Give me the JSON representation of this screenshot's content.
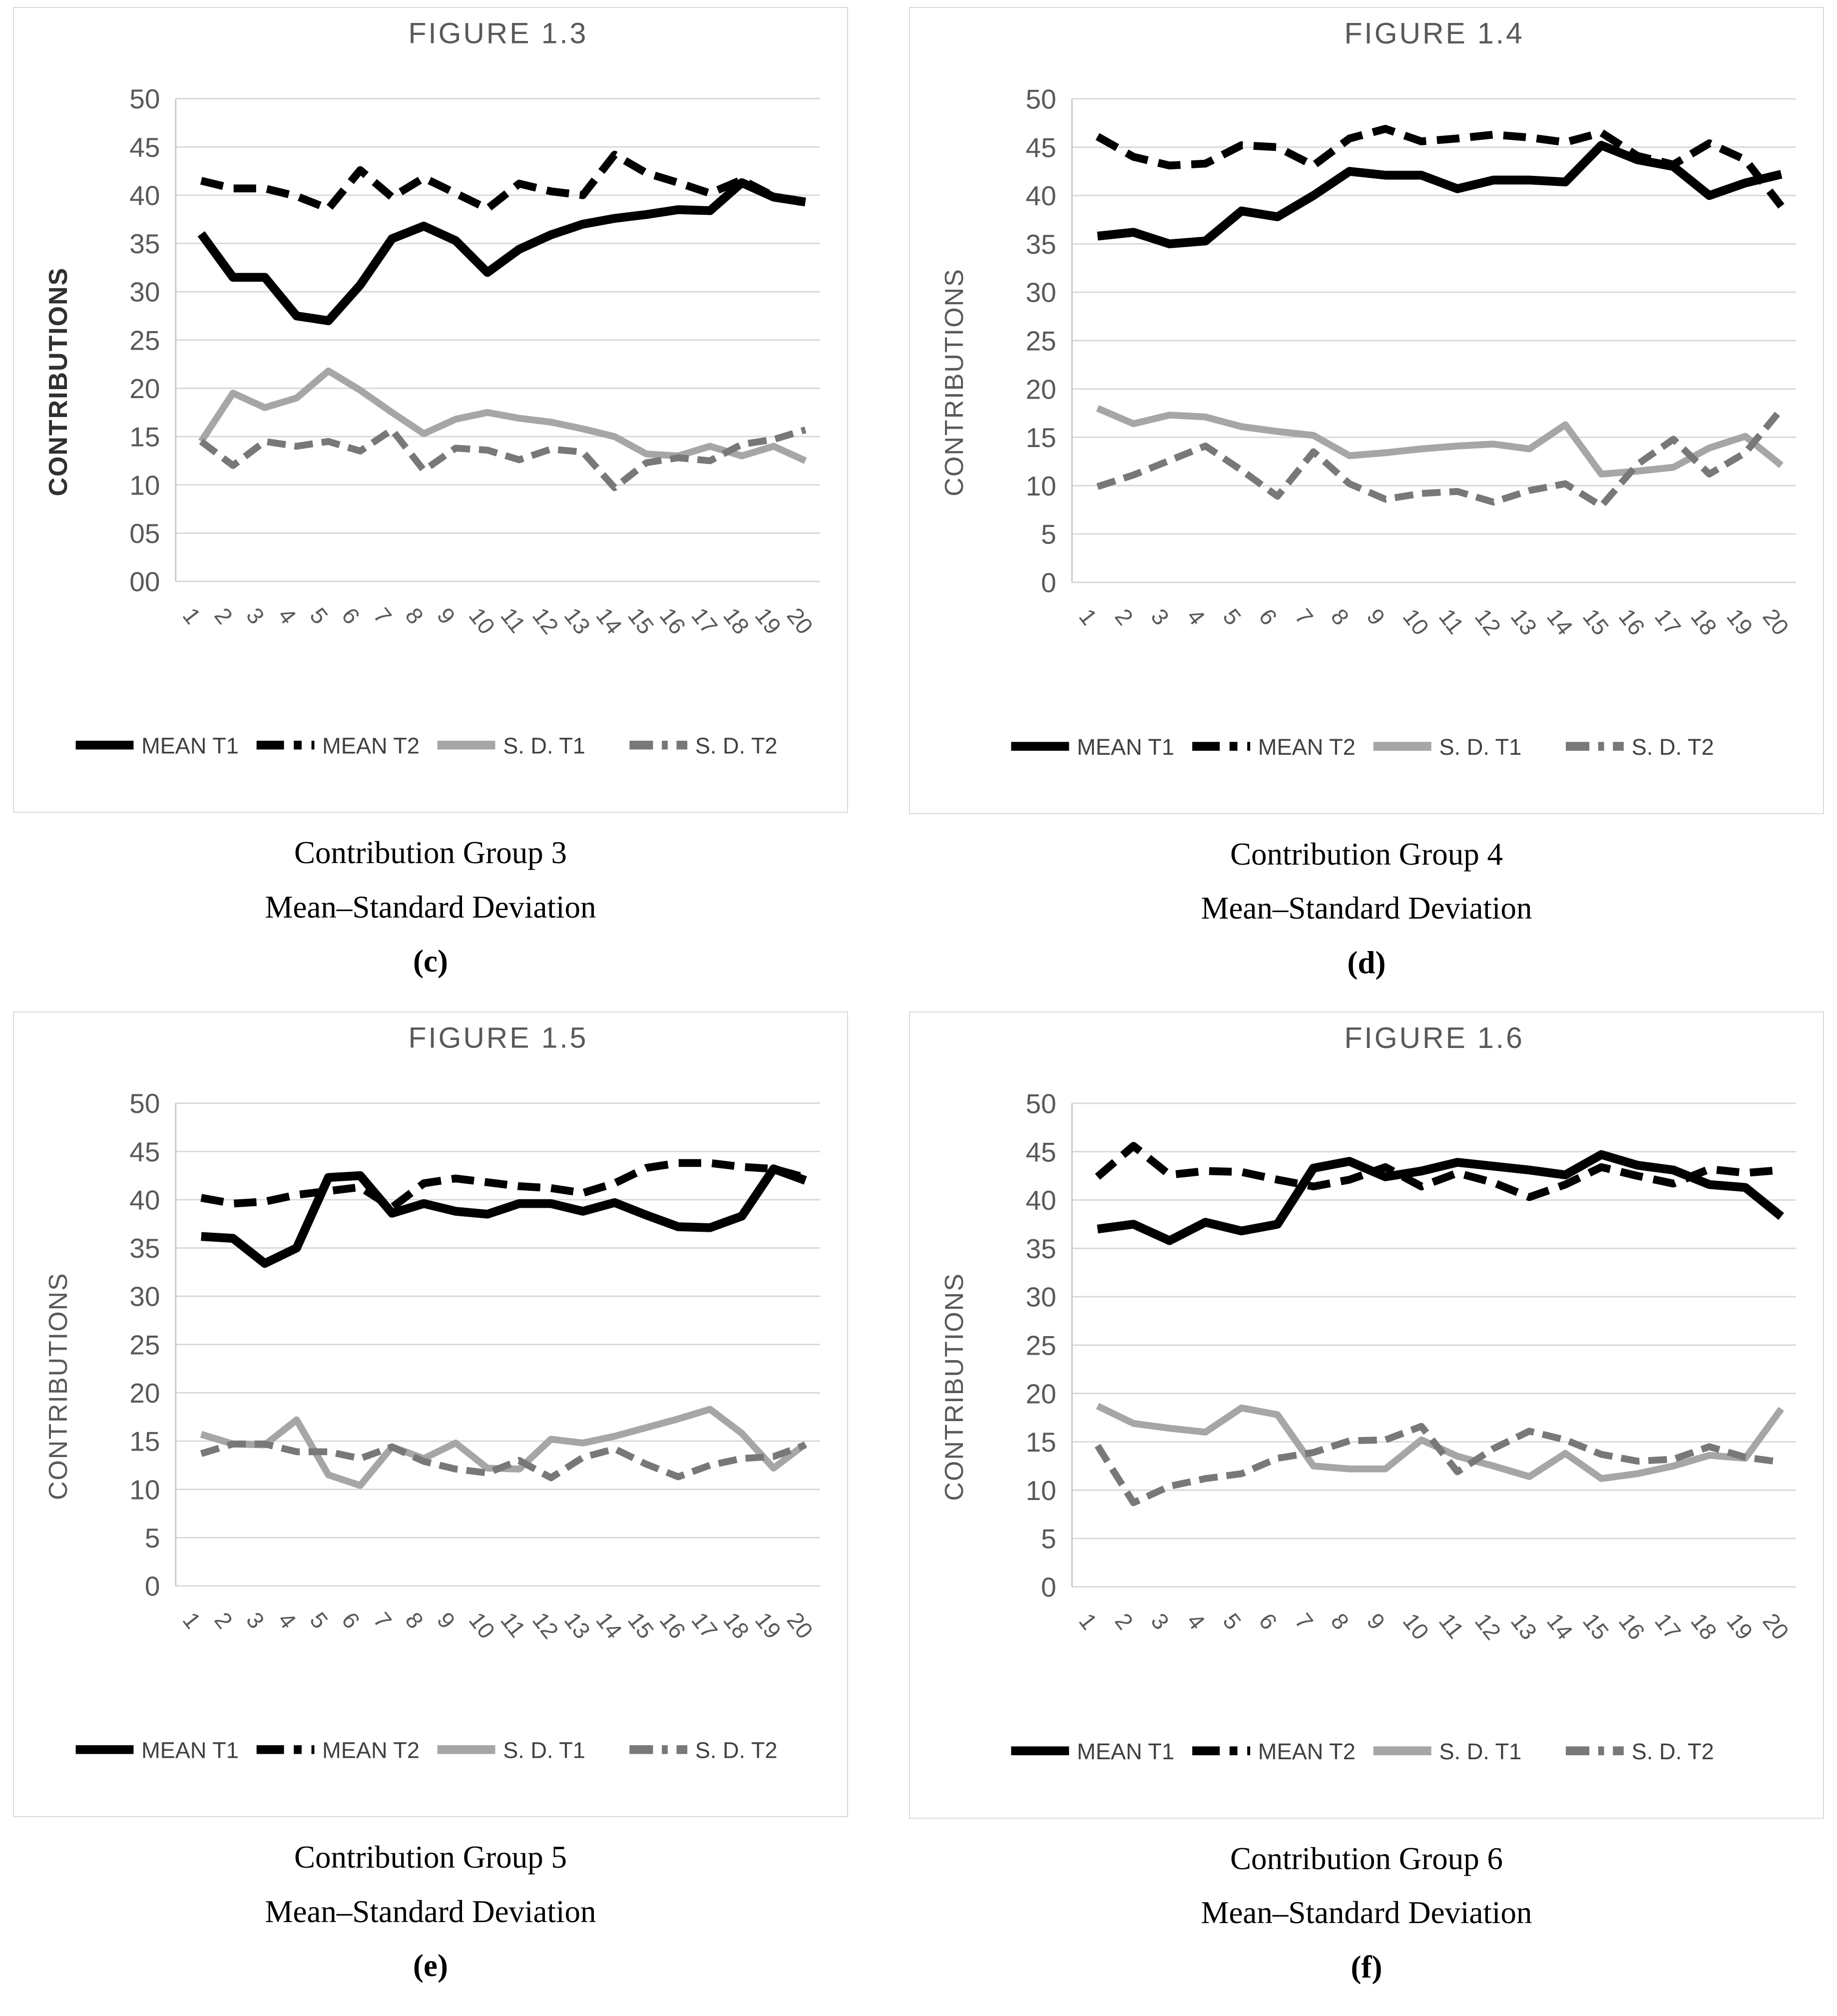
{
  "page": {
    "background": "#ffffff",
    "grid_color": "#d9d9d9",
    "axis_text_color": "#595959",
    "legend_text_color": "#404040"
  },
  "figures": [
    {
      "panel_title": "FIGURE 1.3",
      "y_axis_title": "CONTRIBUTIONS",
      "y_axis_title_bold": true,
      "y_tick_labels": [
        "50",
        "45",
        "40",
        "35",
        "30",
        "25",
        "20",
        "15",
        "10",
        "05",
        "00"
      ],
      "caption": {
        "group": "Contribution Group 3",
        "sub": "Mean–Standard Deviation",
        "letter": "(c)"
      }
    },
    {
      "panel_title": "FIGURE 1.4",
      "y_axis_title": "CONTRIBUTIONS",
      "y_axis_title_bold": false,
      "y_tick_labels": [
        "50",
        "45",
        "40",
        "35",
        "30",
        "25",
        "20",
        "15",
        "10",
        "5",
        "0"
      ],
      "caption": {
        "group": "Contribution Group 4",
        "sub": "Mean–Standard Deviation",
        "letter": "(d)"
      }
    },
    {
      "panel_title": "FIGURE 1.5",
      "y_axis_title": "CONTRIBUTIONS",
      "y_axis_title_bold": false,
      "y_tick_labels": [
        "50",
        "45",
        "40",
        "35",
        "30",
        "25",
        "20",
        "15",
        "10",
        "5",
        "0"
      ],
      "caption": {
        "group": "Contribution Group 5",
        "sub": "Mean–Standard Deviation",
        "letter": "(e)"
      }
    },
    {
      "panel_title": "FIGURE 1.6",
      "y_axis_title": "CONTRIBUTIONS",
      "y_axis_title_bold": false,
      "y_tick_labels": [
        "50",
        "45",
        "40",
        "35",
        "30",
        "25",
        "20",
        "15",
        "10",
        "5",
        "0"
      ],
      "caption": {
        "group": "Contribution Group 6",
        "sub": "Mean–Standard Deviation",
        "letter": "(f)"
      }
    }
  ],
  "chart_data": [
    {
      "type": "line",
      "title": "FIGURE 1.3",
      "xlabel": "",
      "ylabel": "CONTRIBUTIONS",
      "ylim": [
        0,
        50
      ],
      "grid": true,
      "legend_position": "bottom",
      "x": [
        1,
        2,
        3,
        4,
        5,
        6,
        7,
        8,
        9,
        10,
        11,
        12,
        13,
        14,
        15,
        16,
        17,
        18,
        19,
        20
      ],
      "series": [
        {
          "name": "MEAN T1",
          "color": "#000000",
          "dash": null,
          "values": [
            36,
            31.5,
            31.5,
            27.5,
            27,
            30.7,
            35.5,
            36.8,
            35.3,
            32,
            34.4,
            35.9,
            37,
            37.6,
            38,
            38.5,
            38.4,
            41.3,
            39.8,
            39.3
          ]
        },
        {
          "name": "MEAN T2",
          "color": "#000000",
          "dash": "46 22",
          "values": [
            41.5,
            40.7,
            40.7,
            39.9,
            38.6,
            42.6,
            39.8,
            41.8,
            40.2,
            38.6,
            41.2,
            40.4,
            40,
            44.2,
            42.3,
            41.3,
            40.2,
            41.6,
            39.9,
            39.2
          ]
        },
        {
          "name": "S. D. T1",
          "color": "#a6a6a6",
          "dash": null,
          "values": [
            14.5,
            19.5,
            18,
            19,
            21.8,
            19.8,
            17.5,
            15.3,
            16.8,
            17.5,
            16.9,
            16.5,
            15.8,
            15,
            13.2,
            13,
            14,
            13,
            14,
            12.5
          ]
        },
        {
          "name": "S. D. T2",
          "color": "#787878",
          "dash": "38 18",
          "values": [
            14.5,
            12,
            14.5,
            14,
            14.5,
            13.5,
            15.7,
            11.5,
            13.8,
            13.6,
            12.6,
            13.7,
            13.4,
            9.7,
            12.3,
            12.8,
            12.5,
            14.2,
            14.7,
            15.7
          ]
        }
      ]
    },
    {
      "type": "line",
      "title": "FIGURE 1.4",
      "xlabel": "",
      "ylabel": "CONTRIBUTIONS",
      "ylim": [
        0,
        50
      ],
      "grid": true,
      "legend_position": "bottom",
      "x": [
        1,
        2,
        3,
        4,
        5,
        6,
        7,
        8,
        9,
        10,
        11,
        12,
        13,
        14,
        15,
        16,
        17,
        18,
        19,
        20
      ],
      "series": [
        {
          "name": "MEAN T1",
          "color": "#000000",
          "dash": null,
          "values": [
            35.8,
            36.2,
            35,
            35.3,
            38.4,
            37.8,
            40,
            42.5,
            42.1,
            42.1,
            40.7,
            41.6,
            41.6,
            41.4,
            45.2,
            43.7,
            43,
            40,
            41.3,
            42.2
          ]
        },
        {
          "name": "MEAN T2",
          "color": "#000000",
          "dash": "46 22",
          "values": [
            46.1,
            44,
            43.1,
            43.3,
            45.2,
            45,
            43.1,
            45.9,
            46.9,
            45.6,
            45.9,
            46.3,
            46,
            45.5,
            46.5,
            44.1,
            43.2,
            45.4,
            43.7,
            38.9
          ]
        },
        {
          "name": "S. D. T1",
          "color": "#a6a6a6",
          "dash": null,
          "values": [
            18,
            16.4,
            17.3,
            17.1,
            16.1,
            15.6,
            15.2,
            13.1,
            13.4,
            13.8,
            14.1,
            14.3,
            13.8,
            16.3,
            11.2,
            11.5,
            11.9,
            13.9,
            15.1,
            12.1
          ]
        },
        {
          "name": "S. D. T2",
          "color": "#787878",
          "dash": "38 18",
          "values": [
            9.9,
            11.1,
            12.6,
            14.1,
            11.6,
            8.9,
            13.5,
            10.2,
            8.6,
            9.2,
            9.4,
            8.3,
            9.5,
            10.2,
            7.9,
            12.2,
            14.8,
            11.2,
            13.4,
            17.9
          ]
        }
      ]
    },
    {
      "type": "line",
      "title": "FIGURE 1.5",
      "xlabel": "",
      "ylabel": "CONTRIBUTIONS",
      "ylim": [
        0,
        50
      ],
      "grid": true,
      "legend_position": "bottom",
      "x": [
        1,
        2,
        3,
        4,
        5,
        6,
        7,
        8,
        9,
        10,
        11,
        12,
        13,
        14,
        15,
        16,
        17,
        18,
        19,
        20
      ],
      "series": [
        {
          "name": "MEAN T1",
          "color": "#000000",
          "dash": null,
          "values": [
            36.2,
            36,
            33.4,
            35,
            42.3,
            42.5,
            38.6,
            39.6,
            38.8,
            38.5,
            39.6,
            39.6,
            38.8,
            39.7,
            38.4,
            37.2,
            37.1,
            38.3,
            43.2,
            42
          ]
        },
        {
          "name": "MEAN T2",
          "color": "#000000",
          "dash": "46 22",
          "values": [
            40.2,
            39.6,
            39.8,
            40.5,
            40.9,
            41.3,
            39.2,
            41.7,
            42.2,
            41.8,
            41.4,
            41.2,
            40.7,
            41.7,
            43.3,
            43.8,
            43.8,
            43.4,
            43.2,
            42.3
          ]
        },
        {
          "name": "S. D. T1",
          "color": "#a6a6a6",
          "dash": null,
          "values": [
            15.7,
            14.7,
            14.6,
            17.2,
            11.5,
            10.4,
            14.4,
            13.2,
            14.8,
            12.2,
            12.1,
            15.2,
            14.8,
            15.5,
            16.4,
            17.3,
            18.3,
            15.8,
            12.2,
            14.7
          ]
        },
        {
          "name": "S. D. T2",
          "color": "#787878",
          "dash": "38 18",
          "values": [
            13.7,
            14.7,
            14.7,
            13.9,
            13.9,
            13.2,
            14.4,
            12.9,
            12.1,
            11.7,
            13,
            11.2,
            13.3,
            14.2,
            12.6,
            11.3,
            12.5,
            13.2,
            13.4,
            14.6
          ]
        }
      ]
    },
    {
      "type": "line",
      "title": "FIGURE 1.6",
      "xlabel": "",
      "ylabel": "CONTRIBUTIONS",
      "ylim": [
        0,
        50
      ],
      "grid": true,
      "legend_position": "bottom",
      "x": [
        1,
        2,
        3,
        4,
        5,
        6,
        7,
        8,
        9,
        10,
        11,
        12,
        13,
        14,
        15,
        16,
        17,
        18,
        19,
        20
      ],
      "series": [
        {
          "name": "MEAN T1",
          "color": "#000000",
          "dash": null,
          "values": [
            37,
            37.5,
            35.8,
            37.7,
            36.8,
            37.5,
            43.3,
            44,
            42.4,
            43,
            43.9,
            43.5,
            43.1,
            42.6,
            44.7,
            43.6,
            43.1,
            41.6,
            41.3,
            38.3
          ]
        },
        {
          "name": "MEAN T2",
          "color": "#000000",
          "dash": "46 22",
          "values": [
            42.4,
            45.6,
            42.6,
            43,
            42.9,
            42.1,
            41.4,
            42.1,
            43.4,
            41.4,
            42.8,
            41.8,
            40.3,
            41.6,
            43.4,
            42.5,
            41.7,
            43.2,
            42.8,
            43.1
          ]
        },
        {
          "name": "S. D. T1",
          "color": "#a6a6a6",
          "dash": null,
          "values": [
            18.7,
            16.9,
            16.4,
            16,
            18.5,
            17.8,
            12.5,
            12.2,
            12.2,
            15.2,
            13.5,
            12.5,
            11.4,
            13.8,
            11.2,
            11.7,
            12.5,
            13.6,
            13.3,
            18.4
          ]
        },
        {
          "name": "S. D. T2",
          "color": "#787878",
          "dash": "38 18",
          "values": [
            14.6,
            8.7,
            10.4,
            11.2,
            11.7,
            13.3,
            13.9,
            15.1,
            15.2,
            16.6,
            11.9,
            14.3,
            16.1,
            15.2,
            13.7,
            13,
            13.2,
            14.5,
            13.4,
            12.9
          ]
        }
      ]
    }
  ]
}
